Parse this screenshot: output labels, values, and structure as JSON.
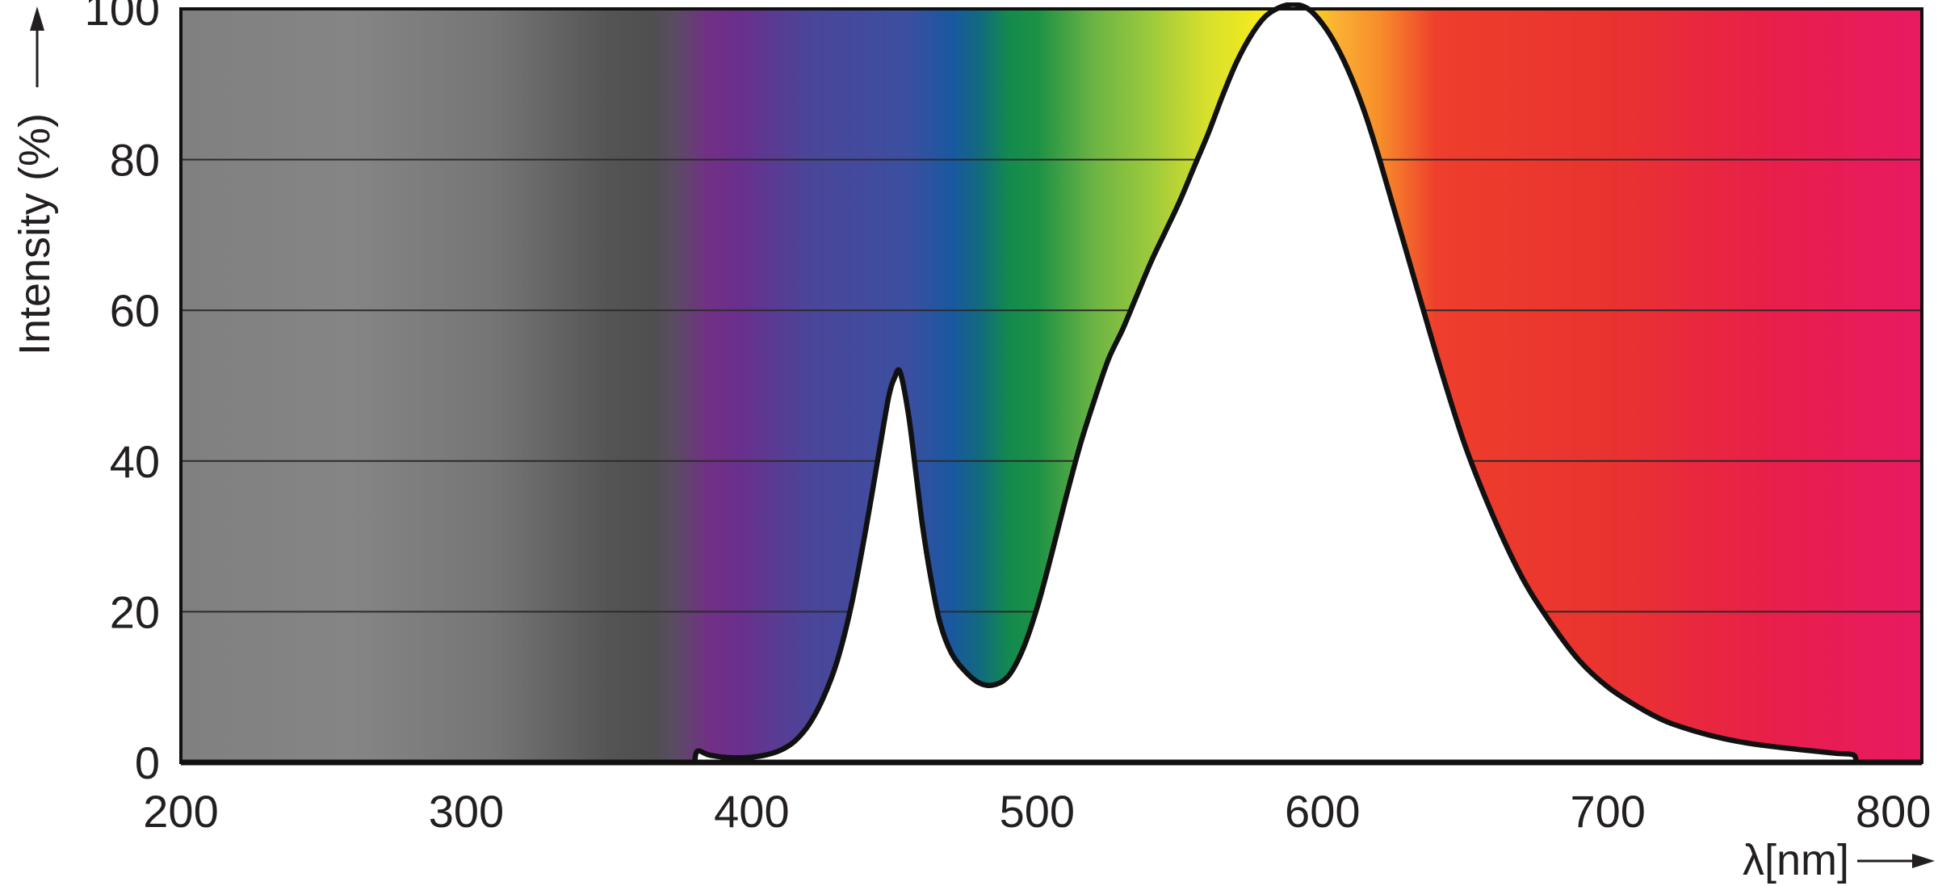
{
  "chart_data": {
    "type": "area",
    "title": "",
    "xlabel": "λ[nm]",
    "ylabel": "Intensity (%)",
    "xlim": [
      200,
      810
    ],
    "ylim": [
      0,
      100
    ],
    "x_ticks": [
      200,
      300,
      400,
      500,
      600,
      700,
      800
    ],
    "y_ticks": [
      0,
      20,
      40,
      60,
      80,
      100
    ],
    "grid": true,
    "legend": "none",
    "background_spectrum": {
      "stops": [
        {
          "nm": 200,
          "color": "#808080"
        },
        {
          "nm": 260,
          "color": "#858585"
        },
        {
          "nm": 310,
          "color": "#757575"
        },
        {
          "nm": 350,
          "color": "#545454"
        },
        {
          "nm": 365,
          "color": "#4f4f4f"
        },
        {
          "nm": 373,
          "color": "#5a4c62"
        },
        {
          "nm": 385,
          "color": "#722f86"
        },
        {
          "nm": 395,
          "color": "#6a2f8c"
        },
        {
          "nm": 420,
          "color": "#4b4599"
        },
        {
          "nm": 455,
          "color": "#3b4fa0"
        },
        {
          "nm": 470,
          "color": "#1958a0"
        },
        {
          "nm": 480,
          "color": "#126a7e"
        },
        {
          "nm": 490,
          "color": "#138a4e"
        },
        {
          "nm": 500,
          "color": "#1c9145"
        },
        {
          "nm": 520,
          "color": "#6cb444"
        },
        {
          "nm": 540,
          "color": "#9dca3c"
        },
        {
          "nm": 560,
          "color": "#d8e02c"
        },
        {
          "nm": 580,
          "color": "#f8ec1c"
        },
        {
          "nm": 592,
          "color": "#f8e018"
        },
        {
          "nm": 605,
          "color": "#fbb034"
        },
        {
          "nm": 620,
          "color": "#f78e2b"
        },
        {
          "nm": 640,
          "color": "#ee3e2c"
        },
        {
          "nm": 700,
          "color": "#e9332f"
        },
        {
          "nm": 760,
          "color": "#e81e4b"
        },
        {
          "nm": 810,
          "color": "#e81a62"
        }
      ]
    },
    "series": [
      {
        "x": [
          380,
          381,
          385,
          390,
          395,
          400,
          405,
          410,
          415,
          420,
          425,
          430,
          435,
          440,
          445,
          448,
          450,
          452,
          455,
          458,
          460,
          463,
          466,
          470,
          475,
          480,
          485,
          490,
          495,
          500,
          505,
          510,
          515,
          520,
          525,
          530,
          535,
          540,
          545,
          550,
          555,
          560,
          565,
          570,
          575,
          580,
          585,
          590,
          595,
          600,
          605,
          610,
          615,
          620,
          630,
          640,
          650,
          660,
          670,
          680,
          690,
          700,
          710,
          720,
          730,
          740,
          750,
          760,
          770,
          780,
          786,
          787
        ],
        "y": [
          0,
          1.5,
          1,
          0.7,
          0.6,
          0.7,
          1,
          1.6,
          2.8,
          5,
          8.5,
          13.5,
          21,
          31,
          42,
          48.5,
          51,
          51.8,
          46,
          37,
          31,
          24,
          18.5,
          14.5,
          12,
          10.5,
          10.3,
          11.5,
          15,
          20.5,
          27.5,
          35,
          42,
          48,
          53.5,
          57.5,
          62,
          66.5,
          70.5,
          74.5,
          79,
          83.5,
          88.5,
          93,
          96.5,
          99,
          100.2,
          100.6,
          100,
          98,
          95,
          91,
          86,
          80,
          67,
          54,
          42,
          32.5,
          24.5,
          18.5,
          13.5,
          10,
          7.5,
          5.5,
          4.2,
          3.2,
          2.5,
          2,
          1.6,
          1.2,
          1,
          0
        ]
      }
    ]
  }
}
